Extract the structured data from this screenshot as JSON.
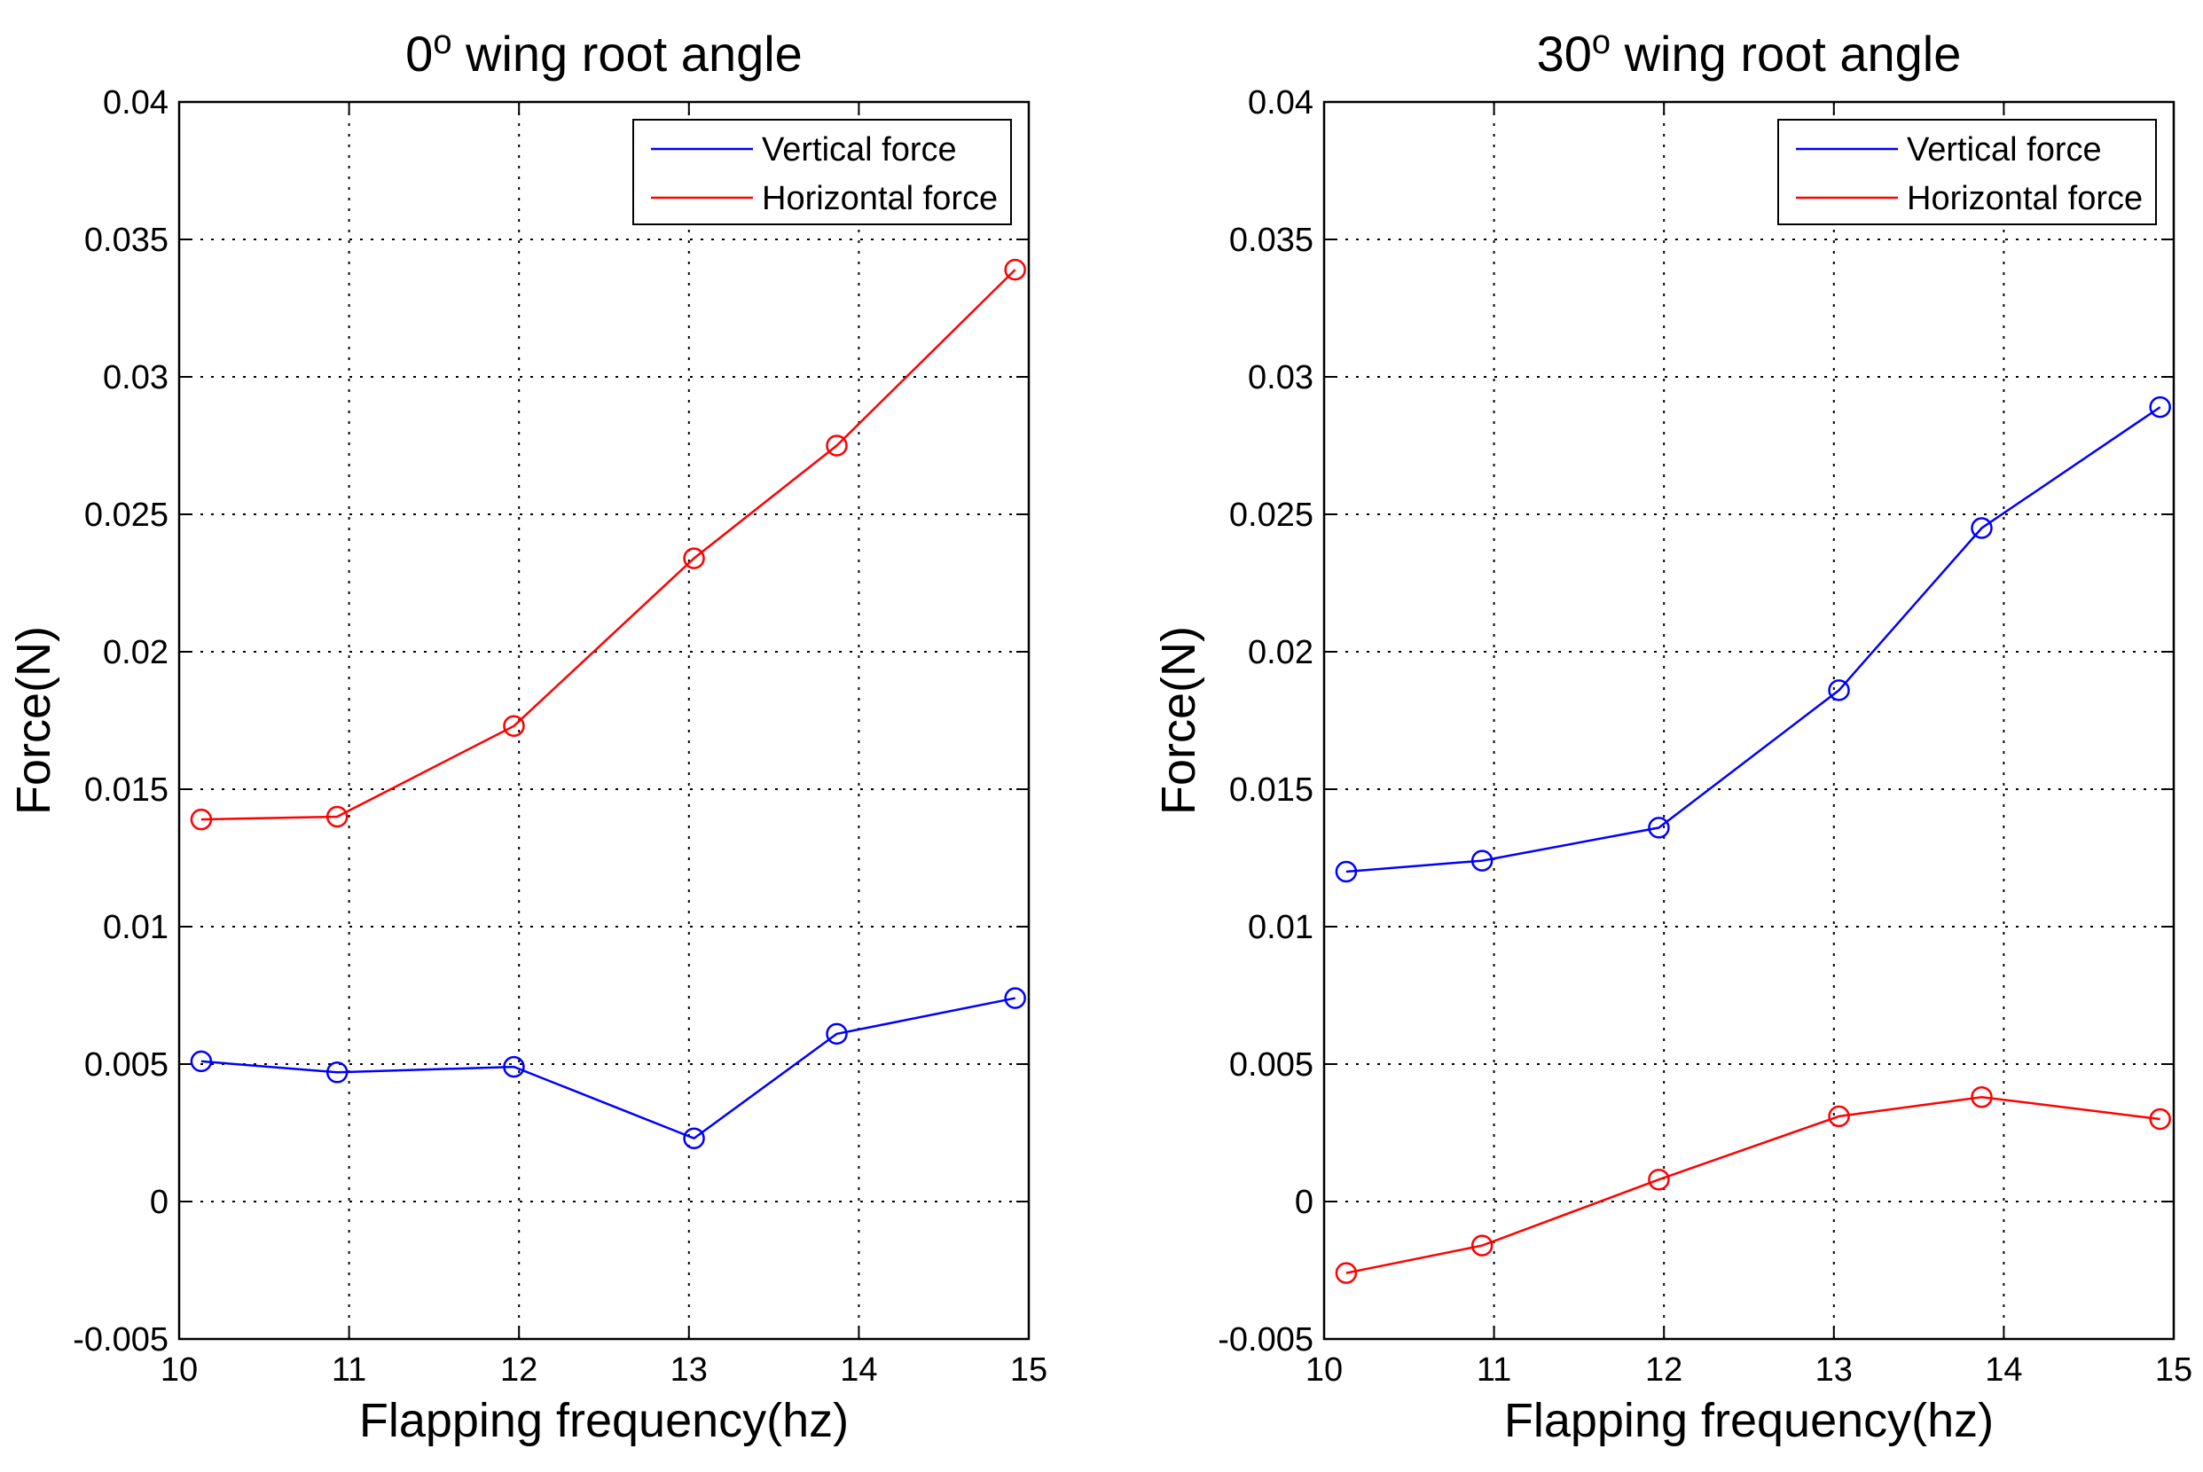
{
  "chart_data": [
    {
      "type": "line",
      "title": "0",
      "title_superscript": "o",
      "title_suffix": " wing root angle",
      "xlabel": "Flapping frequency(hz)",
      "ylabel": "Force(N)",
      "xlim": [
        10,
        15
      ],
      "ylim": [
        -0.005,
        0.04
      ],
      "xticks": [
        "10",
        "11",
        "12",
        "13",
        "14",
        "15"
      ],
      "yticks": [
        "-0.005",
        "0",
        "0.005",
        "0.01",
        "0.015",
        "0.02",
        "0.025",
        "0.03",
        "0.035",
        "0.04"
      ],
      "grid": true,
      "legend_position": "top-right",
      "series": [
        {
          "name": "Vertical force",
          "color": "#0000ff",
          "marker": "circle",
          "x": [
            10.13,
            10.93,
            11.97,
            13.03,
            13.87,
            14.92
          ],
          "values": [
            0.0051,
            0.0047,
            0.0049,
            0.0023,
            0.0061,
            0.0074
          ]
        },
        {
          "name": "Horizontal force",
          "color": "#ff0000",
          "marker": "circle",
          "x": [
            10.13,
            10.93,
            11.97,
            13.03,
            13.87,
            14.92
          ],
          "values": [
            0.0139,
            0.014,
            0.0173,
            0.0234,
            0.0275,
            0.0339
          ]
        }
      ]
    },
    {
      "type": "line",
      "title": "30",
      "title_superscript": "o",
      "title_suffix": " wing root angle",
      "xlabel": "Flapping frequency(hz)",
      "ylabel": "Force(N)",
      "xlim": [
        10,
        15
      ],
      "ylim": [
        -0.005,
        0.04
      ],
      "xticks": [
        "10",
        "11",
        "12",
        "13",
        "14",
        "15"
      ],
      "yticks": [
        "-0.005",
        "0",
        "0.005",
        "0.01",
        "0.015",
        "0.02",
        "0.025",
        "0.03",
        "0.035",
        "0.04"
      ],
      "grid": true,
      "legend_position": "top-right",
      "series": [
        {
          "name": "Vertical force",
          "color": "#0000ff",
          "marker": "circle",
          "x": [
            10.13,
            10.93,
            11.97,
            13.03,
            13.87,
            14.92
          ],
          "values": [
            0.012,
            0.0124,
            0.0136,
            0.0186,
            0.0245,
            0.0289
          ]
        },
        {
          "name": "Horizontal force",
          "color": "#ff0000",
          "marker": "circle",
          "x": [
            10.13,
            10.93,
            11.97,
            13.03,
            13.87,
            14.92
          ],
          "values": [
            -0.0026,
            -0.0016,
            0.0008,
            0.0031,
            0.0038,
            0.003
          ]
        }
      ]
    }
  ]
}
